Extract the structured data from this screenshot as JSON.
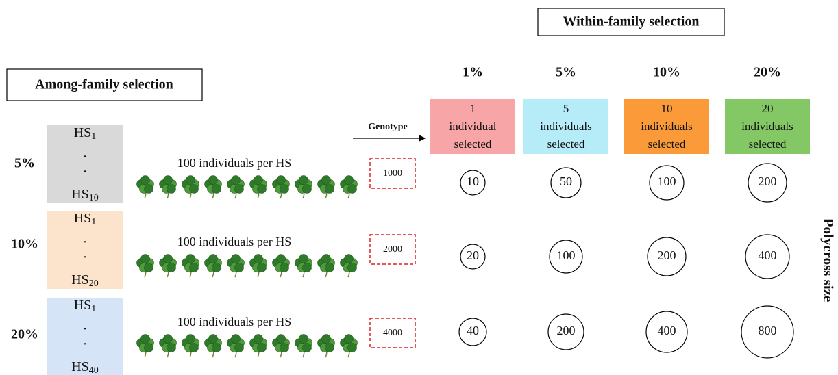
{
  "within_family_title": "Within-family selection",
  "among_family_title": "Among-family selection",
  "genotype_label": "Genotype",
  "side_label": "Polycross size",
  "columns": [
    {
      "percent": "1%",
      "box": [
        "1",
        "individual",
        "selected"
      ]
    },
    {
      "percent": "5%",
      "box": [
        "5",
        "individuals",
        "selected"
      ]
    },
    {
      "percent": "10%",
      "box": [
        "10",
        "individuals",
        "selected"
      ]
    },
    {
      "percent": "20%",
      "box": [
        "20",
        "individuals",
        "selected"
      ]
    }
  ],
  "rows": [
    {
      "percent": "5%",
      "hs_top": {
        "base": "HS",
        "sub": "1"
      },
      "dots": [
        ".",
        "."
      ],
      "hs_bottom": {
        "base": "HS",
        "sub": "10"
      },
      "individuals": "100 individuals per HS",
      "genotypes": 1000,
      "polycross": [
        10,
        50,
        100,
        200
      ]
    },
    {
      "percent": "10%",
      "hs_top": {
        "base": "HS",
        "sub": "1"
      },
      "dots": [
        ".",
        "."
      ],
      "hs_bottom": {
        "base": "HS",
        "sub": "20"
      },
      "individuals": "100 individuals per HS",
      "genotypes": 2000,
      "polycross": [
        20,
        100,
        200,
        400
      ]
    },
    {
      "percent": "20%",
      "hs_top": {
        "base": "HS",
        "sub": "1"
      },
      "dots": [
        ".",
        "."
      ],
      "hs_bottom": {
        "base": "HS",
        "sub": "40"
      },
      "individuals": "100 individuals per HS",
      "genotypes": 4000,
      "polycross": [
        40,
        200,
        400,
        800
      ]
    }
  ]
}
